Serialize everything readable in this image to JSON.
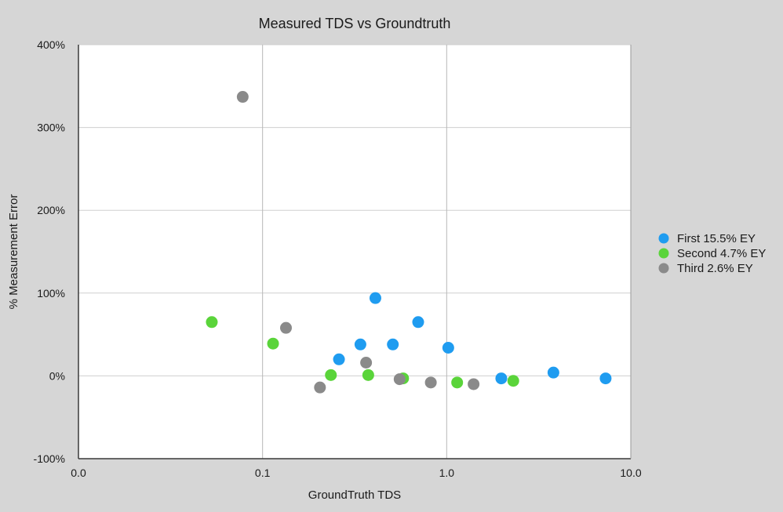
{
  "chart_data": {
    "type": "scatter",
    "title": "Measured TDS vs Groundtruth",
    "xlabel": "GroundTruth TDS",
    "ylabel": "% Measurement Error",
    "x_scale": "log",
    "xlim": [
      0.01,
      10.0
    ],
    "ylim": [
      -100,
      400
    ],
    "x_ticks": [
      {
        "value": 0.01,
        "label": "0.0"
      },
      {
        "value": 0.1,
        "label": "0.1"
      },
      {
        "value": 1.0,
        "label": "1.0"
      },
      {
        "value": 10.0,
        "label": "10.0"
      }
    ],
    "y_ticks": [
      {
        "value": -100,
        "label": "-100%"
      },
      {
        "value": 0,
        "label": "0%"
      },
      {
        "value": 100,
        "label": "100%"
      },
      {
        "value": 200,
        "label": "200%"
      },
      {
        "value": 300,
        "label": "300%"
      },
      {
        "value": 400,
        "label": "400%"
      }
    ],
    "grid": "vertical lines at major x ticks; horizontal lines at y ticks",
    "legend_position": "right",
    "series": [
      {
        "name": "First 15.5% EY",
        "color": "#1f9cf0",
        "points": [
          {
            "x": 0.26,
            "y": 20
          },
          {
            "x": 0.34,
            "y": 38
          },
          {
            "x": 0.41,
            "y": 94
          },
          {
            "x": 0.51,
            "y": 38
          },
          {
            "x": 0.7,
            "y": 65
          },
          {
            "x": 1.02,
            "y": 34
          },
          {
            "x": 1.98,
            "y": -3
          },
          {
            "x": 3.8,
            "y": 4
          },
          {
            "x": 7.3,
            "y": -3
          }
        ]
      },
      {
        "name": "Second 4.7% EY",
        "color": "#5ad43a",
        "points": [
          {
            "x": 0.053,
            "y": 65
          },
          {
            "x": 0.114,
            "y": 39
          },
          {
            "x": 0.235,
            "y": 1
          },
          {
            "x": 0.375,
            "y": 1
          },
          {
            "x": 0.58,
            "y": -3
          },
          {
            "x": 1.14,
            "y": -8
          },
          {
            "x": 2.3,
            "y": -6
          }
        ]
      },
      {
        "name": "Third 2.6% EY",
        "color": "#8a8a8a",
        "points": [
          {
            "x": 0.078,
            "y": 337
          },
          {
            "x": 0.134,
            "y": 58
          },
          {
            "x": 0.205,
            "y": -14
          },
          {
            "x": 0.365,
            "y": 16
          },
          {
            "x": 0.555,
            "y": -4
          },
          {
            "x": 0.82,
            "y": -8
          },
          {
            "x": 1.4,
            "y": -10
          }
        ]
      }
    ]
  }
}
